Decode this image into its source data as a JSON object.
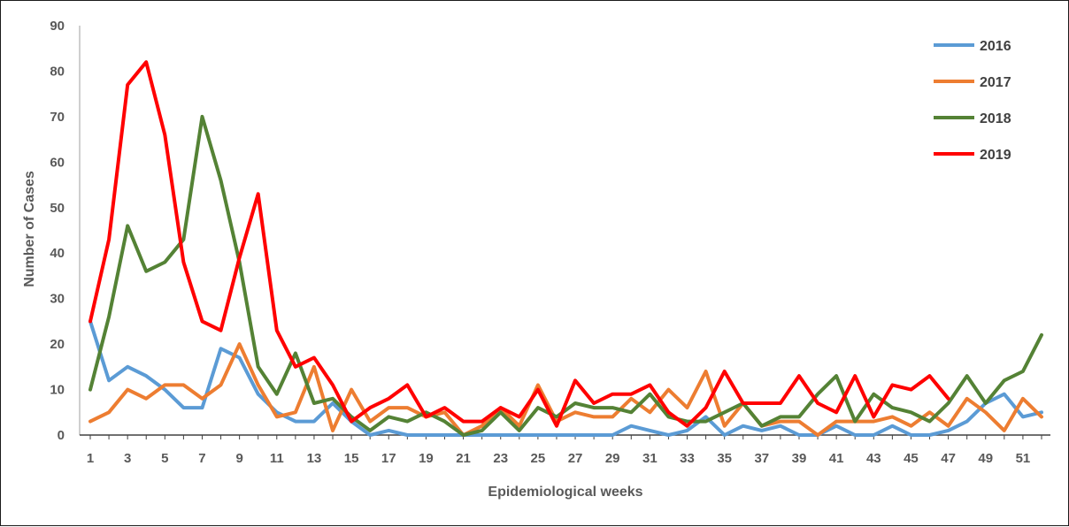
{
  "chart_data": {
    "type": "line",
    "title": "",
    "xlabel": "Epidemiological weeks",
    "ylabel": "Number of Cases",
    "xlim": [
      1,
      52
    ],
    "ylim": [
      0,
      90
    ],
    "y_ticks": [
      0,
      10,
      20,
      30,
      40,
      50,
      60,
      70,
      80,
      90
    ],
    "x_tick_labels": [
      1,
      3,
      5,
      7,
      9,
      11,
      13,
      15,
      17,
      19,
      21,
      23,
      25,
      27,
      29,
      31,
      33,
      35,
      37,
      39,
      41,
      43,
      45,
      47,
      49,
      51
    ],
    "legend_position": "top-right",
    "grid": false,
    "x": [
      1,
      2,
      3,
      4,
      5,
      6,
      7,
      8,
      9,
      10,
      11,
      12,
      13,
      14,
      15,
      16,
      17,
      18,
      19,
      20,
      21,
      22,
      23,
      24,
      25,
      26,
      27,
      28,
      29,
      30,
      31,
      32,
      33,
      34,
      35,
      36,
      37,
      38,
      39,
      40,
      41,
      42,
      43,
      44,
      45,
      46,
      47,
      48,
      49,
      50,
      51,
      52
    ],
    "series": [
      {
        "name": "2016",
        "color": "#5b9bd5",
        "values": [
          25,
          12,
          15,
          13,
          10,
          6,
          6,
          19,
          17,
          9,
          5,
          3,
          3,
          7,
          3,
          0,
          1,
          0,
          0,
          0,
          0,
          0,
          0,
          0,
          0,
          0,
          0,
          0,
          0,
          2,
          1,
          0,
          1,
          4,
          0,
          2,
          1,
          2,
          0,
          0,
          2,
          0,
          0,
          2,
          0,
          0,
          1,
          3,
          7,
          9,
          4,
          5
        ]
      },
      {
        "name": "2017",
        "color": "#ed7d31",
        "values": [
          3,
          5,
          10,
          8,
          11,
          11,
          8,
          11,
          20,
          11,
          4,
          5,
          15,
          1,
          10,
          3,
          6,
          6,
          4,
          5,
          0,
          2,
          6,
          2,
          11,
          3,
          5,
          4,
          4,
          8,
          5,
          10,
          6,
          14,
          2,
          7,
          2,
          3,
          3,
          0,
          3,
          3,
          3,
          4,
          2,
          5,
          2,
          8,
          5,
          1,
          8,
          4
        ]
      },
      {
        "name": "2018",
        "color": "#548235",
        "values": [
          10,
          26,
          46,
          36,
          38,
          43,
          70,
          56,
          38,
          15,
          9,
          18,
          7,
          8,
          4,
          1,
          4,
          3,
          5,
          3,
          0,
          1,
          5,
          1,
          6,
          4,
          7,
          6,
          6,
          5,
          9,
          4,
          3,
          3,
          5,
          7,
          2,
          4,
          4,
          9,
          13,
          3,
          9,
          6,
          5,
          3,
          7,
          13,
          7,
          12,
          14,
          22
        ]
      },
      {
        "name": "2019",
        "color": "#ff0000",
        "values": [
          25,
          43,
          77,
          82,
          66,
          38,
          25,
          23,
          39,
          53,
          23,
          15,
          17,
          11,
          3,
          6,
          8,
          11,
          4,
          6,
          3,
          3,
          6,
          4,
          10,
          2,
          12,
          7,
          9,
          9,
          11,
          5,
          2,
          6,
          14,
          7,
          7,
          7,
          13,
          7,
          5,
          13,
          4,
          11,
          10,
          13,
          8,
          null,
          null,
          null,
          null,
          null
        ]
      }
    ]
  }
}
